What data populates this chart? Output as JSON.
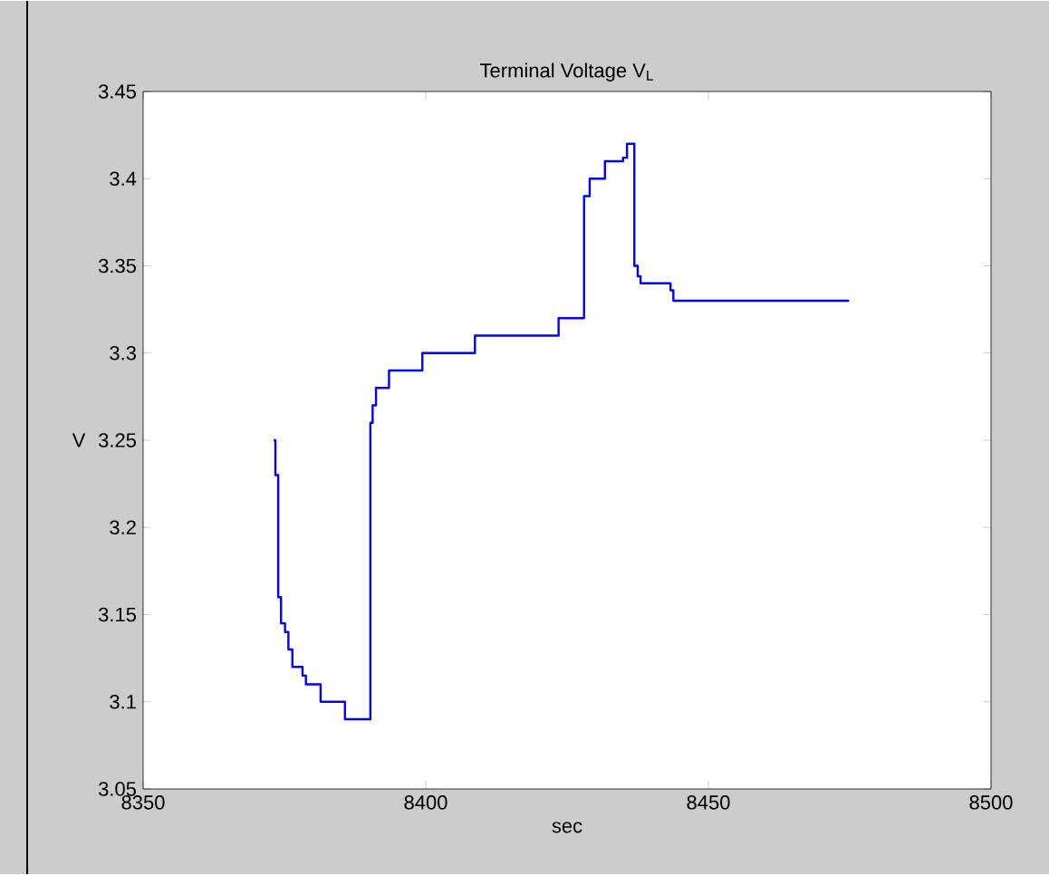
{
  "chart_data": {
    "type": "step",
    "title": "Terminal Voltage V$_{L}$",
    "xlabel": "sec",
    "ylabel": "V",
    "x": [
      8373.1,
      8373.4,
      8373.9,
      8374.4,
      8375.1,
      8375.7,
      8376.4,
      8378.2,
      8378.8,
      8381.4,
      8385.7,
      8390.2,
      8390.6,
      8391.2,
      8393.5,
      8399.4,
      8408.7,
      8423.5,
      8428.0,
      8429.0,
      8431.7,
      8434.9,
      8435.6,
      8436.9,
      8437.5,
      8438.0,
      8443.3,
      8443.8,
      8474.9
    ],
    "values": [
      3.25,
      3.23,
      3.16,
      3.145,
      3.14,
      3.13,
      3.12,
      3.115,
      3.11,
      3.1,
      3.09,
      3.26,
      3.27,
      3.28,
      3.29,
      3.3,
      3.31,
      3.32,
      3.39,
      3.4,
      3.41,
      3.412,
      3.42,
      3.35,
      3.344,
      3.34,
      3.336,
      3.33,
      3.33
    ],
    "color": "#0000ff",
    "xlim": [
      8350,
      8500
    ],
    "ylim": [
      3.05,
      3.45
    ],
    "xticks": [
      8350,
      8400,
      8450,
      8500
    ],
    "yticks": [
      3.05,
      3.1,
      3.15,
      3.2,
      3.25,
      3.3,
      3.35,
      3.4,
      3.45
    ],
    "grid": false
  }
}
